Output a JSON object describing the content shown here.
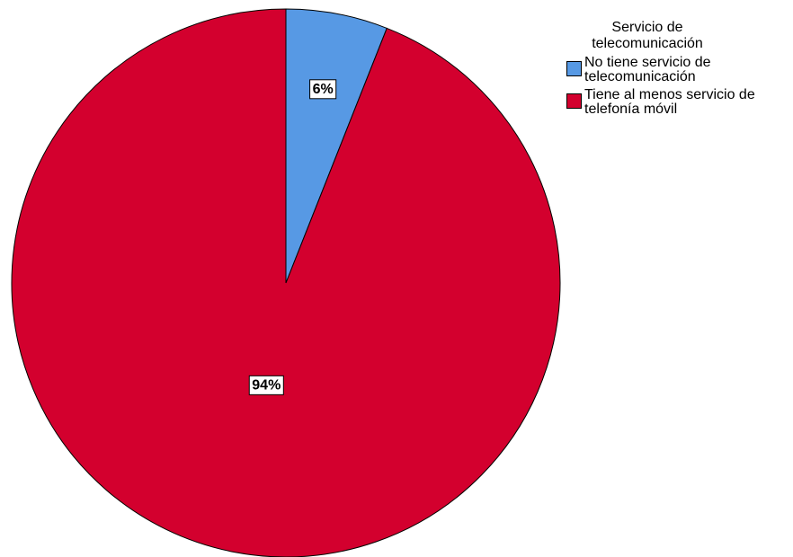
{
  "chart_data": {
    "type": "pie",
    "title": "",
    "legend_title": "Servicio de telecomunicación",
    "legend_position": "top-right",
    "slices": [
      {
        "label": "No tiene servicio de telecomunicación",
        "value": 6,
        "display": "6%",
        "color": "#5799e4"
      },
      {
        "label": "Tiene al menos servicio de telefonía móvil",
        "value": 94,
        "display": "94%",
        "color": "#d3002e"
      }
    ]
  }
}
